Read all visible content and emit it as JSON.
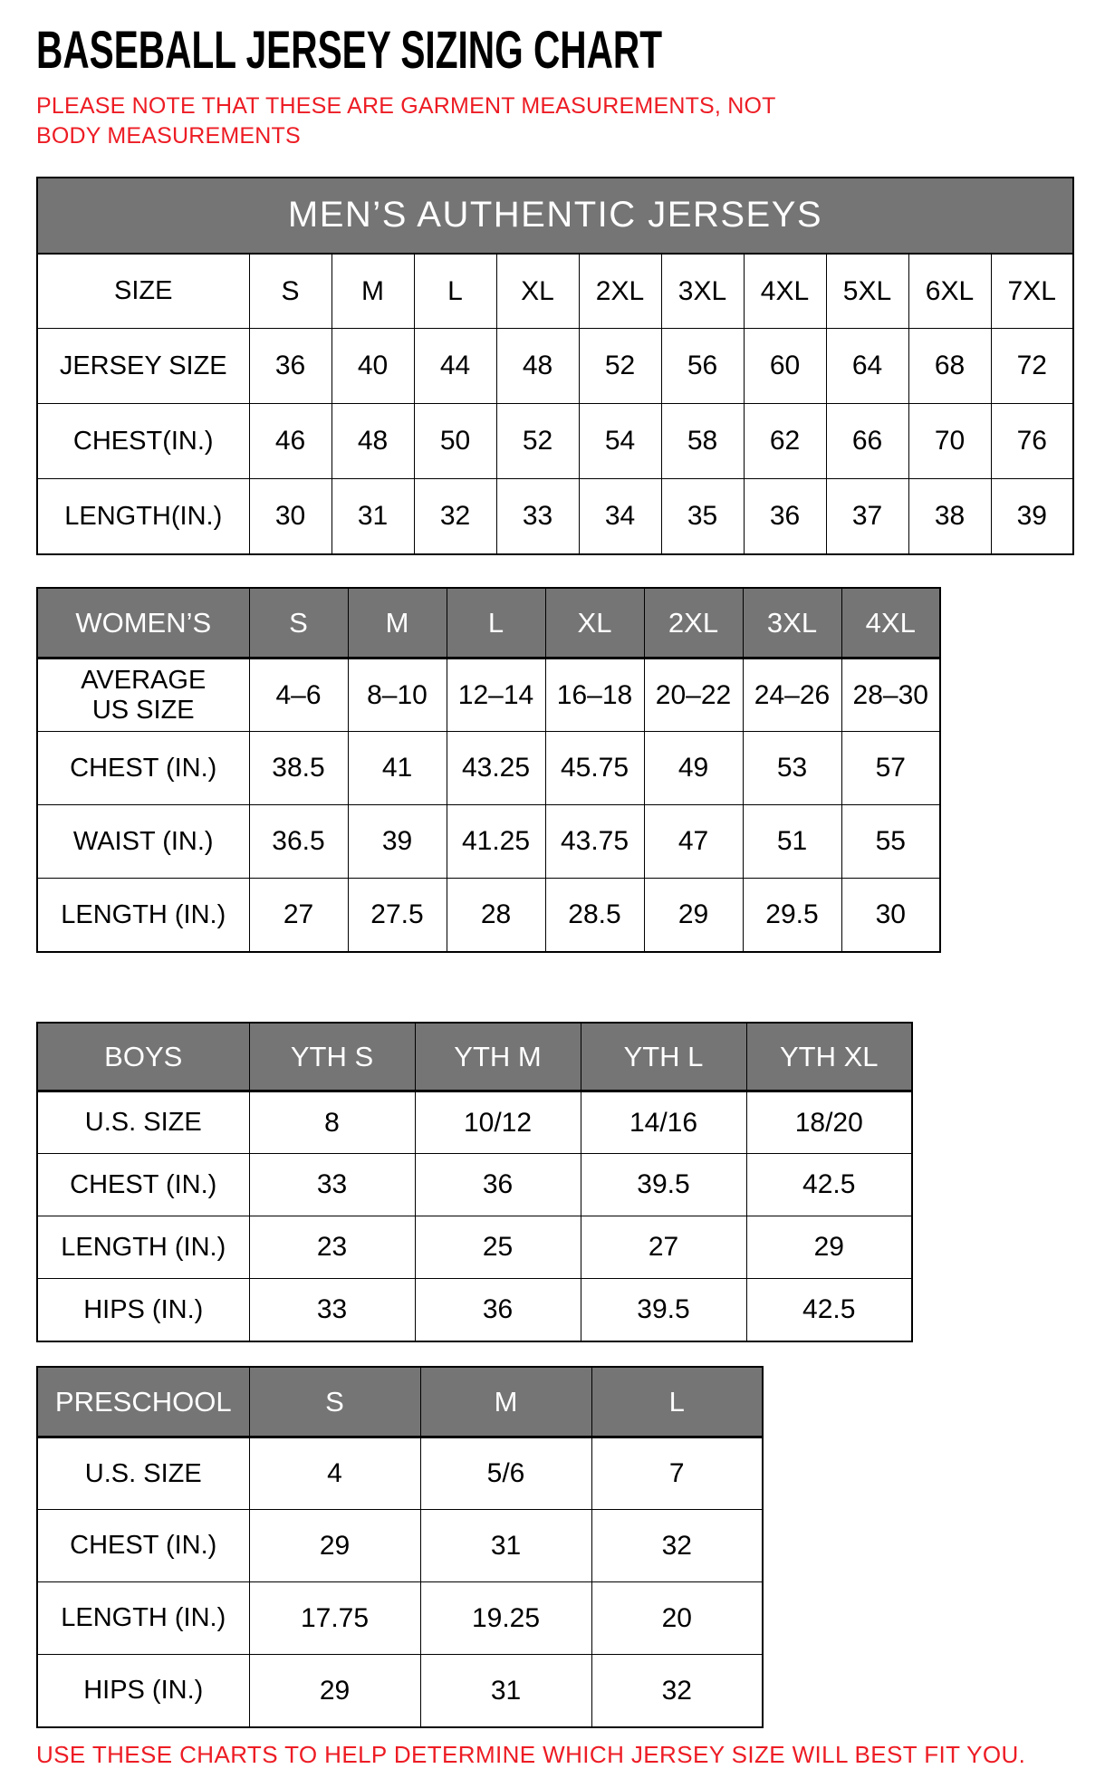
{
  "page": {
    "title": "BASEBALL JERSEY SIZING CHART",
    "note": "PLEASE NOTE THAT THESE ARE GARMENT MEASUREMENTS, NOT BODY MEASUREMENTS",
    "footer": "USE THESE CHARTS TO HELP DETERMINE WHICH JERSEY SIZE WILL BEST FIT YOU."
  },
  "colors": {
    "note_red": "#ed1c24",
    "header_gray": "#757575",
    "border_black": "#000000"
  },
  "tables": [
    {
      "id": "mens",
      "merged_header": "MEN’S AUTHENTIC JERSEYS",
      "rows": [
        [
          "SIZE",
          "S",
          "M",
          "L",
          "XL",
          "2XL",
          "3XL",
          "4XL",
          "5XL",
          "6XL",
          "7XL"
        ],
        [
          "JERSEY SIZE",
          "36",
          "40",
          "44",
          "48",
          "52",
          "56",
          "60",
          "64",
          "68",
          "72"
        ],
        [
          "CHEST(IN.)",
          "46",
          "48",
          "50",
          "52",
          "54",
          "58",
          "62",
          "66",
          "70",
          "76"
        ],
        [
          "LENGTH(IN.)",
          "30",
          "31",
          "32",
          "33",
          "34",
          "35",
          "36",
          "37",
          "38",
          "39"
        ]
      ]
    },
    {
      "id": "womens",
      "header_cells": [
        "WOMEN’S",
        "S",
        "M",
        "L",
        "XL",
        "2XL",
        "3XL",
        "4XL"
      ],
      "rows": [
        [
          "AVERAGE\nUS SIZE",
          "4–6",
          "8–10",
          "12–14",
          "16–18",
          "20–22",
          "24–26",
          "28–30"
        ],
        [
          "CHEST (IN.)",
          "38.5",
          "41",
          "43.25",
          "45.75",
          "49",
          "53",
          "57"
        ],
        [
          "WAIST (IN.)",
          "36.5",
          "39",
          "41.25",
          "43.75",
          "47",
          "51",
          "55"
        ],
        [
          "LENGTH (IN.)",
          "27",
          "27.5",
          "28",
          "28.5",
          "29",
          "29.5",
          "30"
        ]
      ]
    },
    {
      "id": "boys",
      "header_cells": [
        "BOYS",
        "YTH S",
        "YTH M",
        "YTH L",
        "YTH XL"
      ],
      "rows": [
        [
          "U.S. SIZE",
          "8",
          "10/12",
          "14/16",
          "18/20"
        ],
        [
          "CHEST (IN.)",
          "33",
          "36",
          "39.5",
          "42.5"
        ],
        [
          "LENGTH (IN.)",
          "23",
          "25",
          "27",
          "29"
        ],
        [
          "HIPS (IN.)",
          "33",
          "36",
          "39.5",
          "42.5"
        ]
      ]
    },
    {
      "id": "preschool",
      "header_cells": [
        "PRESCHOOL",
        "S",
        "M",
        "L"
      ],
      "rows": [
        [
          "U.S. SIZE",
          "4",
          "5/6",
          "7"
        ],
        [
          "CHEST (IN.)",
          "29",
          "31",
          "32"
        ],
        [
          "LENGTH (IN.)",
          "17.75",
          "19.25",
          "20"
        ],
        [
          "HIPS (IN.)",
          "29",
          "31",
          "32"
        ]
      ]
    }
  ]
}
